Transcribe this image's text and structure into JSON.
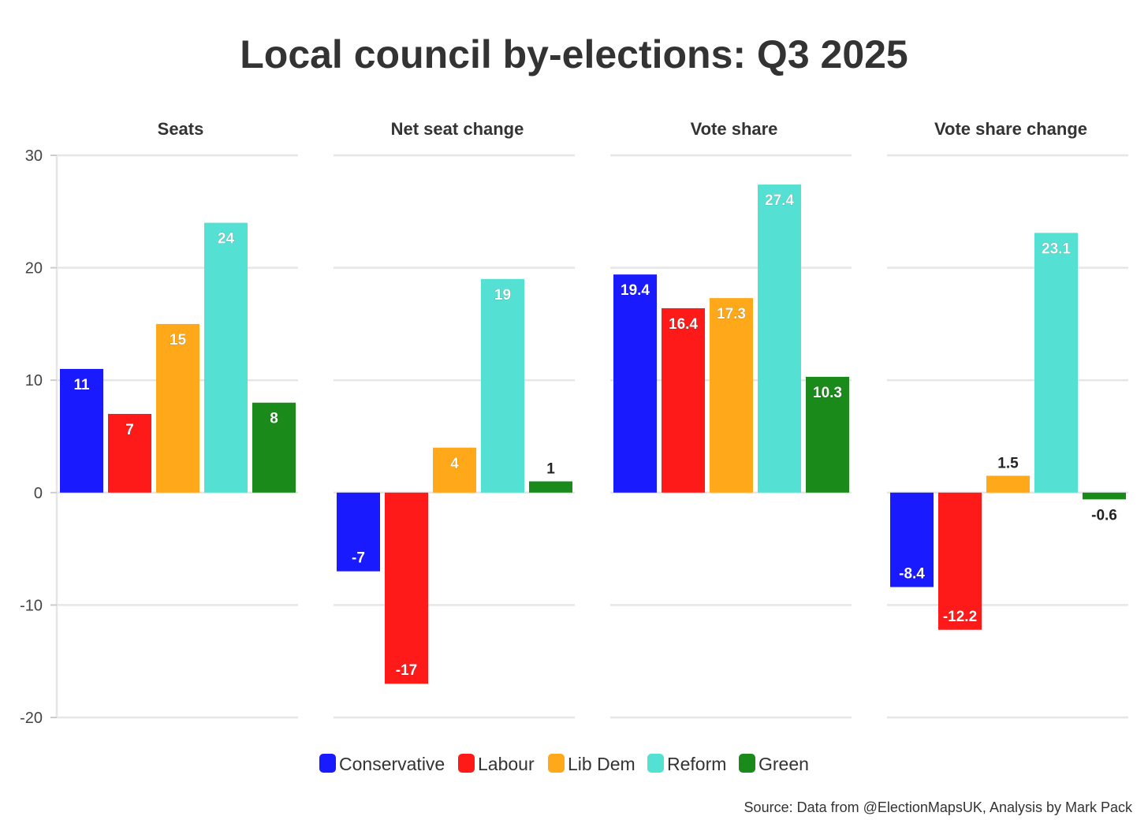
{
  "chart_data": {
    "type": "bar",
    "title": "Local council by-elections: Q3 2025",
    "categories": [
      "Conservative",
      "Labour",
      "Lib Dem",
      "Reform",
      "Green"
    ],
    "colors": {
      "Conservative": "#1a1aff",
      "Labour": "#ff1a1a",
      "Lib Dem": "#ffa81a",
      "Reform": "#55e0d4",
      "Green": "#1a8a1a"
    },
    "ylim": [
      -20,
      30
    ],
    "yticks": [
      "30",
      "20",
      "10",
      "0",
      "-10",
      "-20"
    ],
    "panels": [
      {
        "title": "Seats",
        "values": [
          11,
          7,
          15,
          24,
          8
        ],
        "labels": [
          "11",
          "7",
          "15",
          "24",
          "8"
        ]
      },
      {
        "title": "Net seat change",
        "values": [
          -7,
          -17,
          4,
          19,
          1
        ],
        "labels": [
          "-7",
          "-17",
          "4",
          "19",
          "1"
        ]
      },
      {
        "title": "Vote share",
        "values": [
          19.4,
          16.4,
          17.3,
          27.4,
          10.3
        ],
        "labels": [
          "19.4",
          "16.4",
          "17.3",
          "27.4",
          "10.3"
        ]
      },
      {
        "title": "Vote share change",
        "values": [
          -8.4,
          -12.2,
          1.5,
          23.1,
          -0.6
        ],
        "labels": [
          "-8.4",
          "-12.2",
          "1.5",
          "23.1",
          "-0.6"
        ]
      }
    ],
    "legend": [
      "Conservative",
      "Labour",
      "Lib Dem",
      "Reform",
      "Green"
    ],
    "legend_position": "bottom",
    "grid": true,
    "source": "Source: Data from @ElectionMapsUK, Analysis by Mark Pack"
  }
}
